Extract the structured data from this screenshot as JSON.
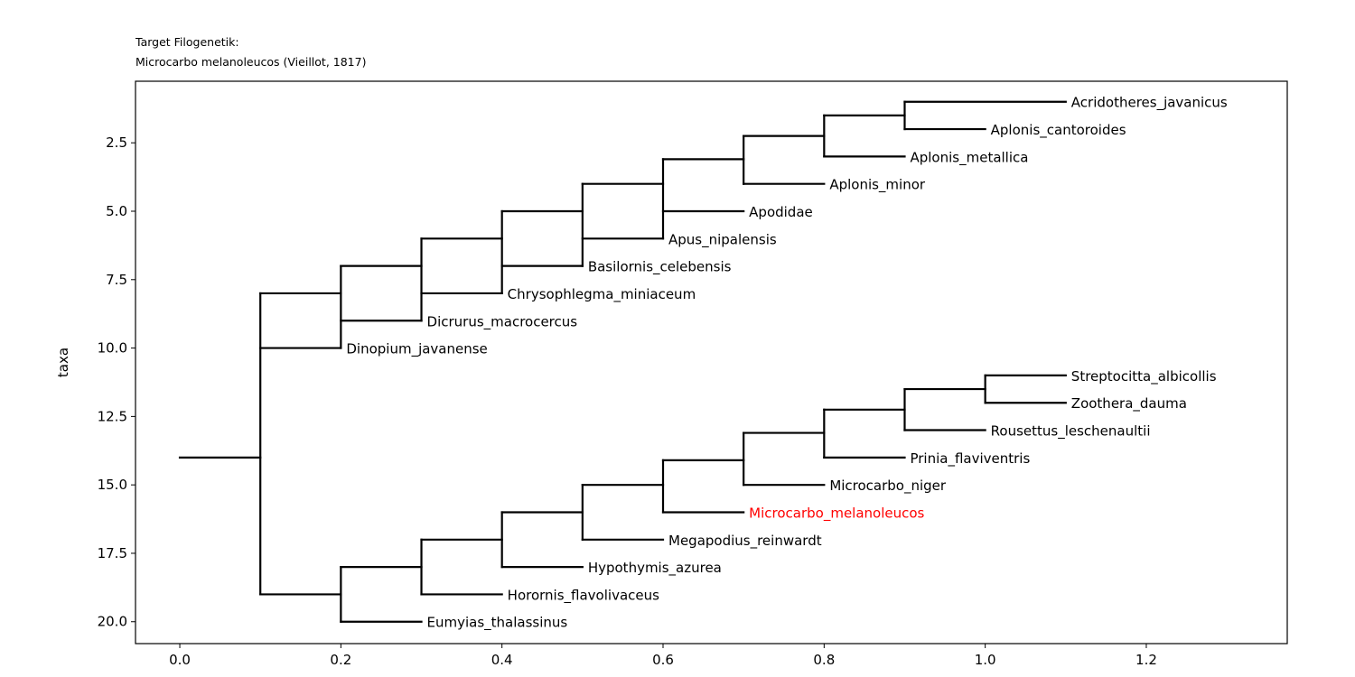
{
  "chart_data": {
    "type": "dendrogram",
    "title_line1": "Target Filogenetik:",
    "title_line2": "Microcarbo melanoleucos (Vieillot, 1817)",
    "xlabel": "",
    "ylabel": "taxa",
    "xlim": [
      -0.055,
      1.375
    ],
    "ylim": [
      20.8,
      0.25
    ],
    "x_ticks": [
      0.0,
      0.2,
      0.4,
      0.6,
      0.8,
      1.0,
      1.2
    ],
    "x_tick_labels": [
      "0.0",
      "0.2",
      "0.4",
      "0.6",
      "0.8",
      "1.0",
      "1.2"
    ],
    "y_ticks": [
      2.5,
      5.0,
      7.5,
      10.0,
      12.5,
      15.0,
      17.5,
      20.0
    ],
    "y_tick_labels": [
      "2.5",
      "5.0",
      "7.5",
      "10.0",
      "12.5",
      "15.0",
      "17.5",
      "20.0"
    ],
    "highlight_color": "#ff0000",
    "line_color": "#000000",
    "root": {
      "x": 0.0,
      "y": 14.0
    },
    "leaves": [
      {
        "name": "Acridotheres_javanicus",
        "x": 1.1,
        "y": 1,
        "highlight": false
      },
      {
        "name": "Aplonis_cantoroides",
        "x": 1.0,
        "y": 2,
        "highlight": false
      },
      {
        "name": "Aplonis_metallica",
        "x": 0.9,
        "y": 3,
        "highlight": false
      },
      {
        "name": "Aplonis_minor",
        "x": 0.8,
        "y": 4,
        "highlight": false
      },
      {
        "name": "Apodidae",
        "x": 0.7,
        "y": 5,
        "highlight": false
      },
      {
        "name": "Apus_nipalensis",
        "x": 0.6,
        "y": 6,
        "highlight": false
      },
      {
        "name": "Basilornis_celebensis",
        "x": 0.5,
        "y": 7,
        "highlight": false
      },
      {
        "name": "Chrysophlegma_miniaceum",
        "x": 0.4,
        "y": 8,
        "highlight": false
      },
      {
        "name": "Dicrurus_macrocercus",
        "x": 0.3,
        "y": 9,
        "highlight": false
      },
      {
        "name": "Dinopium_javanense",
        "x": 0.2,
        "y": 10,
        "highlight": false
      },
      {
        "name": "Streptocitta_albicollis",
        "x": 1.1,
        "y": 11,
        "highlight": false
      },
      {
        "name": "Zoothera_dauma",
        "x": 1.1,
        "y": 12,
        "highlight": false
      },
      {
        "name": "Rousettus_leschenaultii",
        "x": 1.0,
        "y": 13,
        "highlight": false
      },
      {
        "name": "Prinia_flaviventris",
        "x": 0.9,
        "y": 14,
        "highlight": false
      },
      {
        "name": "Microcarbo_niger",
        "x": 0.8,
        "y": 15,
        "highlight": false
      },
      {
        "name": "Microcarbo_melanoleucos",
        "x": 0.7,
        "y": 16,
        "highlight": true
      },
      {
        "name": "Megapodius_reinwardt",
        "x": 0.6,
        "y": 17,
        "highlight": false
      },
      {
        "name": "Hypothymis_azurea",
        "x": 0.5,
        "y": 18,
        "highlight": false
      },
      {
        "name": "Horornis_flavolivaceus",
        "x": 0.4,
        "y": 19,
        "highlight": false
      },
      {
        "name": "Eumyias_thalassinus",
        "x": 0.3,
        "y": 20,
        "highlight": false
      }
    ],
    "internal_nodes": [
      {
        "x": 0.1,
        "y": 14.0,
        "y_range": [
          8.0,
          19.0
        ]
      },
      {
        "x": 0.2,
        "y": 8.0,
        "y_range": [
          7.0,
          10.0
        ]
      },
      {
        "x": 0.3,
        "y": 7.0,
        "y_range": [
          6.0,
          9.0
        ]
      },
      {
        "x": 0.4,
        "y": 6.0,
        "y_range": [
          5.0,
          8.0
        ]
      },
      {
        "x": 0.5,
        "y": 5.0,
        "y_range": [
          4.0,
          7.0
        ]
      },
      {
        "x": 0.6,
        "y": 4.0,
        "y_range": [
          3.1,
          6.0
        ]
      },
      {
        "x": 0.7,
        "y": 3.1,
        "y_range": [
          2.25,
          4.0
        ]
      },
      {
        "x": 0.8,
        "y": 2.25,
        "y_range": [
          1.5,
          3.0
        ]
      },
      {
        "x": 0.9,
        "y": 1.5,
        "y_range": [
          1.0,
          2.0
        ]
      },
      {
        "x": 0.2,
        "y": 19.0,
        "y_range": [
          18.0,
          20.0
        ]
      },
      {
        "x": 0.3,
        "y": 18.0,
        "y_range": [
          17.0,
          19.0
        ]
      },
      {
        "x": 0.4,
        "y": 17.0,
        "y_range": [
          16.0,
          18.0
        ]
      },
      {
        "x": 0.5,
        "y": 16.0,
        "y_range": [
          15.0,
          17.0
        ]
      },
      {
        "x": 0.6,
        "y": 15.0,
        "y_range": [
          14.1,
          16.0
        ]
      },
      {
        "x": 0.7,
        "y": 14.1,
        "y_range": [
          13.1,
          15.0
        ]
      },
      {
        "x": 0.8,
        "y": 13.1,
        "y_range": [
          12.25,
          14.0
        ]
      },
      {
        "x": 0.9,
        "y": 12.25,
        "y_range": [
          11.5,
          13.0
        ]
      },
      {
        "x": 1.0,
        "y": 11.5,
        "y_range": [
          11.0,
          12.0
        ]
      }
    ],
    "branches": [
      {
        "x_from": 0.0,
        "x_to": 0.1,
        "y": 14.0
      },
      {
        "x_from": 0.1,
        "x_to": 0.2,
        "y": 8.0
      },
      {
        "x_from": 0.1,
        "x_to": 0.2,
        "y": 19.0
      },
      {
        "x_from": 0.2,
        "x_to": 0.3,
        "y": 7.0
      },
      {
        "x_from": 0.3,
        "x_to": 0.4,
        "y": 6.0
      },
      {
        "x_from": 0.4,
        "x_to": 0.5,
        "y": 5.0
      },
      {
        "x_from": 0.5,
        "x_to": 0.6,
        "y": 4.0
      },
      {
        "x_from": 0.6,
        "x_to": 0.7,
        "y": 3.1
      },
      {
        "x_from": 0.7,
        "x_to": 0.8,
        "y": 2.25
      },
      {
        "x_from": 0.8,
        "x_to": 0.9,
        "y": 1.5
      },
      {
        "x_from": 0.9,
        "x_to": 1.1,
        "y": 1.0
      },
      {
        "x_from": 0.9,
        "x_to": 1.0,
        "y": 2.0
      },
      {
        "x_from": 0.8,
        "x_to": 0.9,
        "y": 3.0
      },
      {
        "x_from": 0.7,
        "x_to": 0.8,
        "y": 4.0
      },
      {
        "x_from": 0.6,
        "x_to": 0.7,
        "y": 5.0
      },
      {
        "x_from": 0.5,
        "x_to": 0.6,
        "y": 6.0
      },
      {
        "x_from": 0.4,
        "x_to": 0.5,
        "y": 7.0
      },
      {
        "x_from": 0.3,
        "x_to": 0.4,
        "y": 8.0
      },
      {
        "x_from": 0.2,
        "x_to": 0.3,
        "y": 9.0
      },
      {
        "x_from": 0.1,
        "x_to": 0.2,
        "y": 10.0
      },
      {
        "x_from": 0.2,
        "x_to": 0.3,
        "y": 18.0
      },
      {
        "x_from": 0.3,
        "x_to": 0.4,
        "y": 17.0
      },
      {
        "x_from": 0.4,
        "x_to": 0.5,
        "y": 16.0
      },
      {
        "x_from": 0.5,
        "x_to": 0.6,
        "y": 15.0
      },
      {
        "x_from": 0.6,
        "x_to": 0.7,
        "y": 14.1
      },
      {
        "x_from": 0.7,
        "x_to": 0.8,
        "y": 13.1
      },
      {
        "x_from": 0.8,
        "x_to": 0.9,
        "y": 12.25
      },
      {
        "x_from": 0.9,
        "x_to": 1.0,
        "y": 11.5
      },
      {
        "x_from": 1.0,
        "x_to": 1.1,
        "y": 11.0
      },
      {
        "x_from": 1.0,
        "x_to": 1.1,
        "y": 12.0
      },
      {
        "x_from": 0.9,
        "x_to": 1.0,
        "y": 13.0
      },
      {
        "x_from": 0.8,
        "x_to": 0.9,
        "y": 14.0
      },
      {
        "x_from": 0.7,
        "x_to": 0.8,
        "y": 15.0
      },
      {
        "x_from": 0.6,
        "x_to": 0.7,
        "y": 16.0
      },
      {
        "x_from": 0.5,
        "x_to": 0.6,
        "y": 17.0
      },
      {
        "x_from": 0.4,
        "x_to": 0.5,
        "y": 18.0
      },
      {
        "x_from": 0.3,
        "x_to": 0.4,
        "y": 19.0
      },
      {
        "x_from": 0.2,
        "x_to": 0.3,
        "y": 20.0
      }
    ]
  }
}
